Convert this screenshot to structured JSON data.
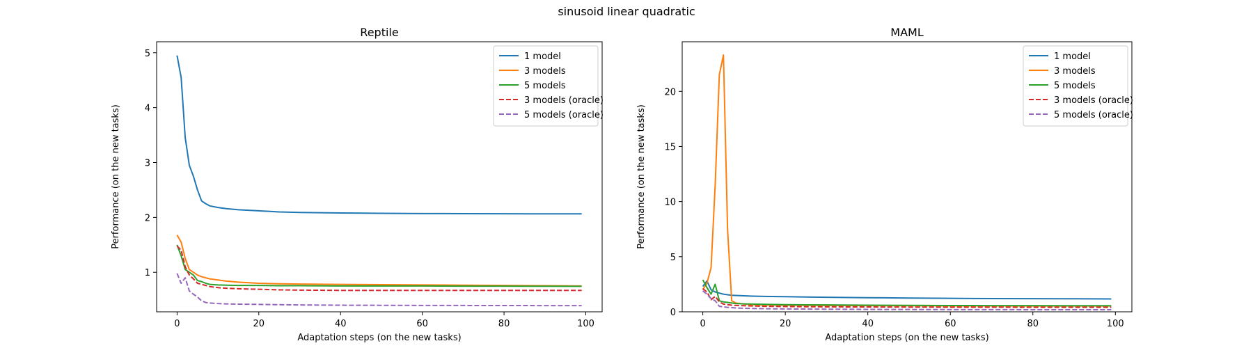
{
  "figure_title": "sinusoid linear quadratic",
  "chart_data": [
    {
      "type": "line",
      "title": "Reptile",
      "xlabel": "Adaptation steps (on the new tasks)",
      "ylabel": "Performance (on the new tasks)",
      "xlim": [
        -5,
        104
      ],
      "ylim": [
        0.28,
        5.2
      ],
      "xticks": [
        0,
        20,
        40,
        60,
        80,
        100
      ],
      "yticks": [
        1,
        2,
        3,
        4,
        5
      ],
      "legend_position": "top-right",
      "x": [
        0,
        1,
        2,
        3,
        4,
        5,
        6,
        7,
        8,
        10,
        12,
        15,
        20,
        25,
        30,
        40,
        50,
        60,
        70,
        80,
        90,
        99
      ],
      "series": [
        {
          "name": "1 model",
          "color": "#1f77b4",
          "dash": "solid",
          "values": [
            4.95,
            4.55,
            3.45,
            2.95,
            2.75,
            2.5,
            2.3,
            2.25,
            2.21,
            2.18,
            2.16,
            2.14,
            2.12,
            2.1,
            2.09,
            2.08,
            2.075,
            2.07,
            2.068,
            2.066,
            2.065,
            2.065
          ]
        },
        {
          "name": "3 models",
          "color": "#ff7f0e",
          "dash": "solid",
          "values": [
            1.68,
            1.55,
            1.25,
            1.05,
            1.0,
            0.95,
            0.92,
            0.9,
            0.88,
            0.86,
            0.84,
            0.82,
            0.8,
            0.79,
            0.785,
            0.78,
            0.775,
            0.77,
            0.765,
            0.76,
            0.755,
            0.75
          ]
        },
        {
          "name": "5 models",
          "color": "#2ca02c",
          "dash": "solid",
          "values": [
            1.5,
            1.3,
            1.05,
            1.0,
            0.95,
            0.85,
            0.83,
            0.8,
            0.78,
            0.77,
            0.765,
            0.76,
            0.76,
            0.755,
            0.755,
            0.75,
            0.75,
            0.75,
            0.748,
            0.747,
            0.746,
            0.745
          ]
        },
        {
          "name": "3 models (oracle)",
          "color": "#d62728",
          "dash": "dashed",
          "values": [
            1.48,
            1.4,
            1.1,
            0.95,
            0.88,
            0.8,
            0.78,
            0.76,
            0.74,
            0.72,
            0.71,
            0.7,
            0.69,
            0.68,
            0.675,
            0.67,
            0.67,
            0.67,
            0.67,
            0.67,
            0.67,
            0.67
          ]
        },
        {
          "name": "5 models (oracle)",
          "color": "#9467bd",
          "dash": "dashed",
          "values": [
            0.98,
            0.8,
            0.9,
            0.66,
            0.6,
            0.55,
            0.48,
            0.45,
            0.44,
            0.43,
            0.425,
            0.42,
            0.415,
            0.41,
            0.405,
            0.4,
            0.398,
            0.396,
            0.395,
            0.394,
            0.393,
            0.392
          ]
        }
      ]
    },
    {
      "type": "line",
      "title": "MAML",
      "xlabel": "Adaptation steps (on the new tasks)",
      "ylabel": "Performance (on the new tasks)",
      "xlim": [
        -5,
        104
      ],
      "ylim": [
        0,
        24.5
      ],
      "xticks": [
        0,
        20,
        40,
        60,
        80,
        100
      ],
      "yticks": [
        0,
        5,
        10,
        15,
        20
      ],
      "legend_position": "top-right",
      "x": [
        0,
        1,
        2,
        3,
        4,
        5,
        6,
        7,
        8,
        10,
        12,
        15,
        20,
        25,
        30,
        40,
        50,
        60,
        70,
        80,
        90,
        99
      ],
      "series": [
        {
          "name": "1 model",
          "color": "#1f77b4",
          "dash": "solid",
          "values": [
            2.3,
            2.8,
            2.0,
            1.8,
            1.7,
            1.6,
            1.55,
            1.5,
            1.48,
            1.45,
            1.42,
            1.4,
            1.37,
            1.34,
            1.32,
            1.28,
            1.25,
            1.22,
            1.2,
            1.19,
            1.18,
            1.17
          ]
        },
        {
          "name": "3 models",
          "color": "#ff7f0e",
          "dash": "solid",
          "values": [
            2.0,
            2.6,
            4.0,
            11.5,
            21.5,
            23.3,
            7.5,
            1.0,
            0.8,
            0.7,
            0.65,
            0.62,
            0.6,
            0.58,
            0.57,
            0.56,
            0.55,
            0.54,
            0.54,
            0.53,
            0.53,
            0.53
          ]
        },
        {
          "name": "5 models",
          "color": "#2ca02c",
          "dash": "solid",
          "values": [
            2.9,
            2.2,
            1.6,
            2.5,
            1.0,
            0.9,
            0.85,
            0.8,
            0.75,
            0.72,
            0.7,
            0.68,
            0.65,
            0.63,
            0.62,
            0.6,
            0.58,
            0.57,
            0.56,
            0.56,
            0.55,
            0.55
          ]
        },
        {
          "name": "3 models (oracle)",
          "color": "#d62728",
          "dash": "dashed",
          "values": [
            2.1,
            1.8,
            1.1,
            1.4,
            0.9,
            0.7,
            0.65,
            0.6,
            0.58,
            0.55,
            0.53,
            0.5,
            0.48,
            0.46,
            0.45,
            0.44,
            0.43,
            0.42,
            0.42,
            0.41,
            0.41,
            0.41
          ]
        },
        {
          "name": "5 models (oracle)",
          "color": "#9467bd",
          "dash": "dashed",
          "values": [
            1.9,
            1.6,
            1.2,
            1.0,
            0.5,
            0.45,
            0.4,
            0.38,
            0.35,
            0.32,
            0.3,
            0.28,
            0.26,
            0.25,
            0.24,
            0.22,
            0.21,
            0.2,
            0.2,
            0.19,
            0.19,
            0.19
          ]
        }
      ]
    }
  ]
}
